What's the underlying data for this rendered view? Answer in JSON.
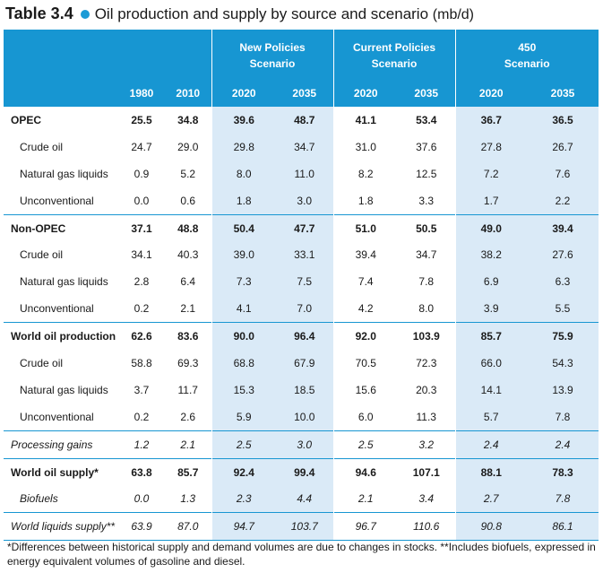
{
  "title": {
    "number": "Table 3.4",
    "text": "Oil production and supply by source and scenario",
    "unit": "(mb/d)"
  },
  "scenarios": [
    {
      "line1": "New Policies",
      "line2": "Scenario"
    },
    {
      "line1": "Current Policies",
      "line2": "Scenario"
    },
    {
      "line1": "450",
      "line2": "Scenario"
    }
  ],
  "years": [
    "1980",
    "2010",
    "2020",
    "2035",
    "2020",
    "2035",
    "2020",
    "2035"
  ],
  "rows": [
    {
      "label": "OPEC",
      "values": [
        "25.5",
        "34.8",
        "39.6",
        "48.7",
        "41.1",
        "53.4",
        "36.7",
        "36.5"
      ]
    },
    {
      "label": "Crude oil",
      "values": [
        "24.7",
        "29.0",
        "29.8",
        "34.7",
        "31.0",
        "37.6",
        "27.8",
        "26.7"
      ]
    },
    {
      "label": "Natural gas liquids",
      "values": [
        "0.9",
        "5.2",
        "8.0",
        "11.0",
        "8.2",
        "12.5",
        "7.2",
        "7.6"
      ]
    },
    {
      "label": "Unconventional",
      "values": [
        "0.0",
        "0.6",
        "1.8",
        "3.0",
        "1.8",
        "3.3",
        "1.7",
        "2.2"
      ]
    },
    {
      "label": "Non-OPEC",
      "values": [
        "37.1",
        "48.8",
        "50.4",
        "47.7",
        "51.0",
        "50.5",
        "49.0",
        "39.4"
      ]
    },
    {
      "label": "Crude oil",
      "values": [
        "34.1",
        "40.3",
        "39.0",
        "33.1",
        "39.4",
        "34.7",
        "38.2",
        "27.6"
      ]
    },
    {
      "label": "Natural gas liquids",
      "values": [
        "2.8",
        "6.4",
        "7.3",
        "7.5",
        "7.4",
        "7.8",
        "6.9",
        "6.3"
      ]
    },
    {
      "label": "Unconventional",
      "values": [
        "0.2",
        "2.1",
        "4.1",
        "7.0",
        "4.2",
        "8.0",
        "3.9",
        "5.5"
      ]
    },
    {
      "label": "World oil production",
      "values": [
        "62.6",
        "83.6",
        "90.0",
        "96.4",
        "92.0",
        "103.9",
        "85.7",
        "75.9"
      ]
    },
    {
      "label": "Crude oil",
      "values": [
        "58.8",
        "69.3",
        "68.8",
        "67.9",
        "70.5",
        "72.3",
        "66.0",
        "54.3"
      ]
    },
    {
      "label": "Natural gas liquids",
      "values": [
        "3.7",
        "11.7",
        "15.3",
        "18.5",
        "15.6",
        "20.3",
        "14.1",
        "13.9"
      ]
    },
    {
      "label": "Unconventional",
      "values": [
        "0.2",
        "2.6",
        "5.9",
        "10.0",
        "6.0",
        "11.3",
        "5.7",
        "7.8"
      ]
    },
    {
      "label": "Processing gains",
      "values": [
        "1.2",
        "2.1",
        "2.5",
        "3.0",
        "2.5",
        "3.2",
        "2.4",
        "2.4"
      ]
    },
    {
      "label": "World oil supply*",
      "values": [
        "63.8",
        "85.7",
        "92.4",
        "99.4",
        "94.6",
        "107.1",
        "88.1",
        "78.3"
      ]
    },
    {
      "label": "Biofuels",
      "values": [
        "0.0",
        "1.3",
        "2.3",
        "4.4",
        "2.1",
        "3.4",
        "2.7",
        "7.8"
      ]
    },
    {
      "label": "World liquids supply**",
      "values": [
        "63.9",
        "87.0",
        "94.7",
        "103.7",
        "96.7",
        "110.6",
        "90.8",
        "86.1"
      ]
    }
  ],
  "footnote": "*Differences between historical supply and demand volumes are due to changes in stocks. **Includes biofuels, expressed in energy equivalent volumes of gasoline and diesel.",
  "colors": {
    "header": "#1796d2",
    "shade": "#daeaf7",
    "accent": "#1b9bd6"
  }
}
